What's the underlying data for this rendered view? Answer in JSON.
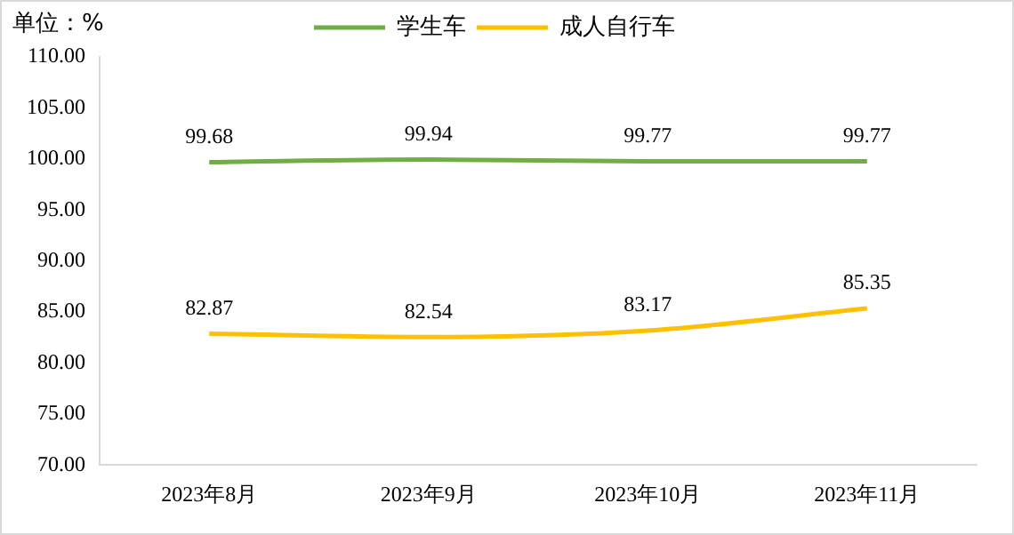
{
  "chart_data": {
    "type": "line",
    "categories": [
      "2023年8月",
      "2023年9月",
      "2023年10月",
      "2023年11月"
    ],
    "series": [
      {
        "name": "学生车",
        "color": "#70ad47",
        "values": [
          99.68,
          99.94,
          99.77,
          99.77
        ]
      },
      {
        "name": "成人自行车",
        "color": "#ffc000",
        "values": [
          82.87,
          82.54,
          83.17,
          85.35
        ]
      }
    ],
    "ylim": [
      70,
      110
    ],
    "yticks": [
      {
        "value": 70,
        "label": "70.00"
      },
      {
        "value": 75,
        "label": "75.00"
      },
      {
        "value": 80,
        "label": "80.00"
      },
      {
        "value": 85,
        "label": "85.00"
      },
      {
        "value": 90,
        "label": "90.00"
      },
      {
        "value": 95,
        "label": "95.00"
      },
      {
        "value": 100,
        "label": "100.00"
      },
      {
        "value": 105,
        "label": "105.00"
      },
      {
        "value": 110,
        "label": "110.00"
      }
    ],
    "annotations": [
      "单位：%"
    ],
    "data_labels": true,
    "grid": false,
    "legend": "top",
    "marker": "none",
    "line_style": "solid"
  }
}
